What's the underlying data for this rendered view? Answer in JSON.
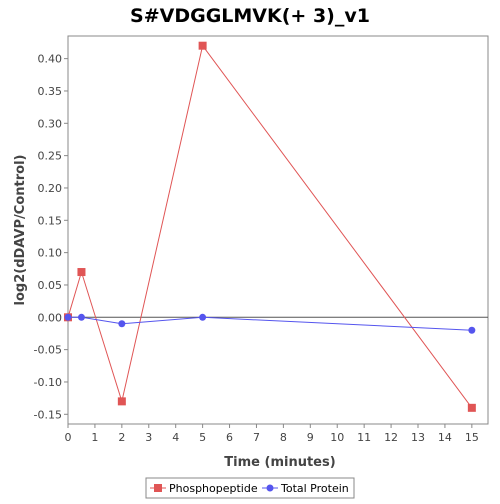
{
  "chart_data": {
    "type": "line",
    "title": "S#VDGGLMVK(+ 3)_v1",
    "xlabel": "Time (minutes)",
    "ylabel": "log2(dDAVP/Control)",
    "xlim": [
      0,
      15.6
    ],
    "ylim": [
      -0.165,
      0.435
    ],
    "x_ticks": [
      0,
      1,
      2,
      3,
      4,
      5,
      6,
      7,
      8,
      9,
      10,
      11,
      12,
      13,
      14,
      15
    ],
    "y_ticks": [
      -0.15,
      -0.1,
      -0.05,
      0.0,
      0.05,
      0.1,
      0.15,
      0.2,
      0.25,
      0.3,
      0.35,
      0.4
    ],
    "y_tick_labels": [
      "-0.15",
      "-0.10",
      "-0.05",
      "0.00",
      "0.05",
      "0.10",
      "0.15",
      "0.20",
      "0.25",
      "0.30",
      "0.35",
      "0.40"
    ],
    "zero_line": true,
    "grid": false,
    "legend_position": "bottom-center",
    "series": [
      {
        "name": "Phosphopeptide",
        "color": "#e05555",
        "marker": "square",
        "x": [
          0,
          0.5,
          2,
          5,
          15
        ],
        "y": [
          0.0,
          0.07,
          -0.13,
          0.42,
          -0.14
        ]
      },
      {
        "name": "Total Protein",
        "color": "#5555ee",
        "marker": "circle",
        "x": [
          0,
          0.5,
          2,
          5,
          15
        ],
        "y": [
          0.0,
          0.0,
          -0.01,
          0.0,
          -0.02
        ]
      }
    ]
  }
}
